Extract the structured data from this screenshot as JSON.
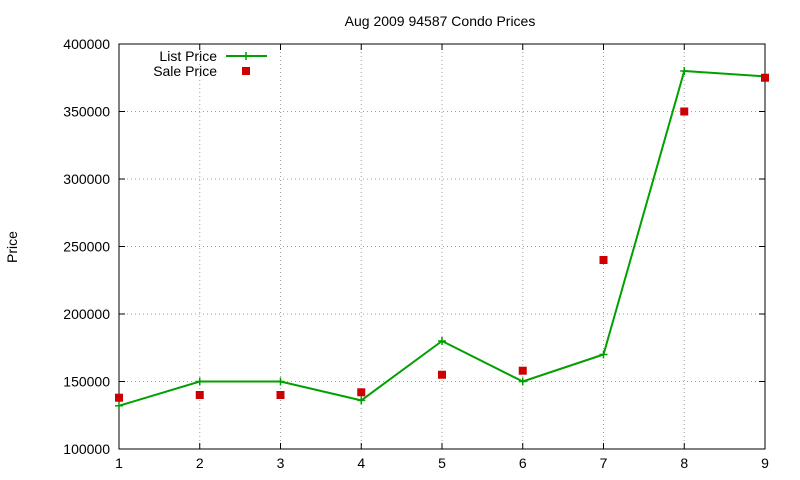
{
  "chart_data": {
    "type": "line",
    "title": "Aug 2009 94587 Condo Prices",
    "xlabel": "",
    "ylabel": "Price",
    "x": [
      1,
      2,
      3,
      4,
      5,
      6,
      7,
      8,
      9
    ],
    "xlim": [
      1,
      9
    ],
    "ylim": [
      100000,
      400000
    ],
    "xticks": [
      "1",
      "2",
      "3",
      "4",
      "5",
      "6",
      "7",
      "8",
      "9"
    ],
    "yticks": [
      "100000",
      "150000",
      "200000",
      "250000",
      "300000",
      "350000",
      "400000"
    ],
    "grid": true,
    "legend_position": "top-left",
    "series": [
      {
        "name": "List Price",
        "style": "line-plus",
        "values": [
          132000,
          150000,
          150000,
          136000,
          180000,
          150000,
          170000,
          380000,
          376000
        ],
        "color": "#00a000"
      },
      {
        "name": "Sale Price",
        "style": "square-markers",
        "values": [
          138000,
          140000,
          140000,
          142000,
          155000,
          158000,
          240000,
          350000,
          375000
        ],
        "color": "#cc0000"
      }
    ]
  }
}
